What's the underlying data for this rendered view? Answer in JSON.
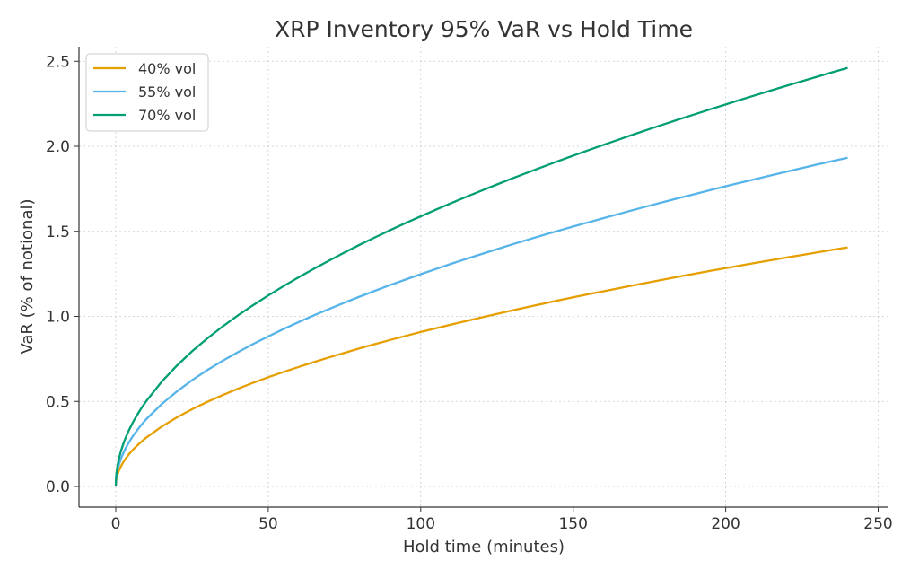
{
  "chart_data": {
    "type": "line",
    "title": "XRP Inventory 95% VaR vs Hold Time",
    "xlabel": "Hold time (minutes)",
    "ylabel": "VaR (% of notional)",
    "xlim": [
      -12,
      252
    ],
    "ylim": [
      -0.12,
      2.58
    ],
    "xticks": [
      0,
      50,
      100,
      150,
      200,
      250
    ],
    "yticks": [
      0.0,
      0.5,
      1.0,
      1.5,
      2.0,
      2.5
    ],
    "xtick_labels": [
      "0",
      "50",
      "100",
      "150",
      "200",
      "250"
    ],
    "ytick_labels": [
      "0.0",
      "0.5",
      "1.0",
      "1.5",
      "2.0",
      "2.5"
    ],
    "grid": true,
    "legend_position": "top-left",
    "x": [
      0,
      1,
      2,
      5,
      10,
      20,
      30,
      40,
      50,
      60,
      70,
      80,
      90,
      100,
      110,
      120,
      130,
      140,
      150,
      160,
      170,
      180,
      190,
      200,
      210,
      220,
      230,
      240
    ],
    "series": [
      {
        "name": "40% vol",
        "color": "#E69F00",
        "values": [
          0,
          0.091,
          0.128,
          0.203,
          0.287,
          0.406,
          0.497,
          0.574,
          0.642,
          0.703,
          0.759,
          0.812,
          0.861,
          0.908,
          0.952,
          0.994,
          1.035,
          1.074,
          1.112,
          1.148,
          1.183,
          1.218,
          1.251,
          1.284,
          1.315,
          1.346,
          1.376,
          1.406
        ]
      },
      {
        "name": "55% vol",
        "color": "#56B4E9",
        "values": [
          0,
          0.125,
          0.176,
          0.279,
          0.395,
          0.558,
          0.684,
          0.789,
          0.882,
          0.967,
          1.044,
          1.116,
          1.184,
          1.248,
          1.309,
          1.367,
          1.423,
          1.477,
          1.528,
          1.578,
          1.627,
          1.674,
          1.72,
          1.765,
          1.808,
          1.851,
          1.893,
          1.933
        ]
      },
      {
        "name": "70% vol",
        "color": "#009E73",
        "values": [
          0,
          0.159,
          0.225,
          0.355,
          0.502,
          0.71,
          0.87,
          1.005,
          1.123,
          1.23,
          1.329,
          1.421,
          1.507,
          1.588,
          1.666,
          1.74,
          1.811,
          1.879,
          1.945,
          2.009,
          2.071,
          2.131,
          2.189,
          2.246,
          2.302,
          2.356,
          2.409,
          2.461
        ]
      }
    ]
  }
}
